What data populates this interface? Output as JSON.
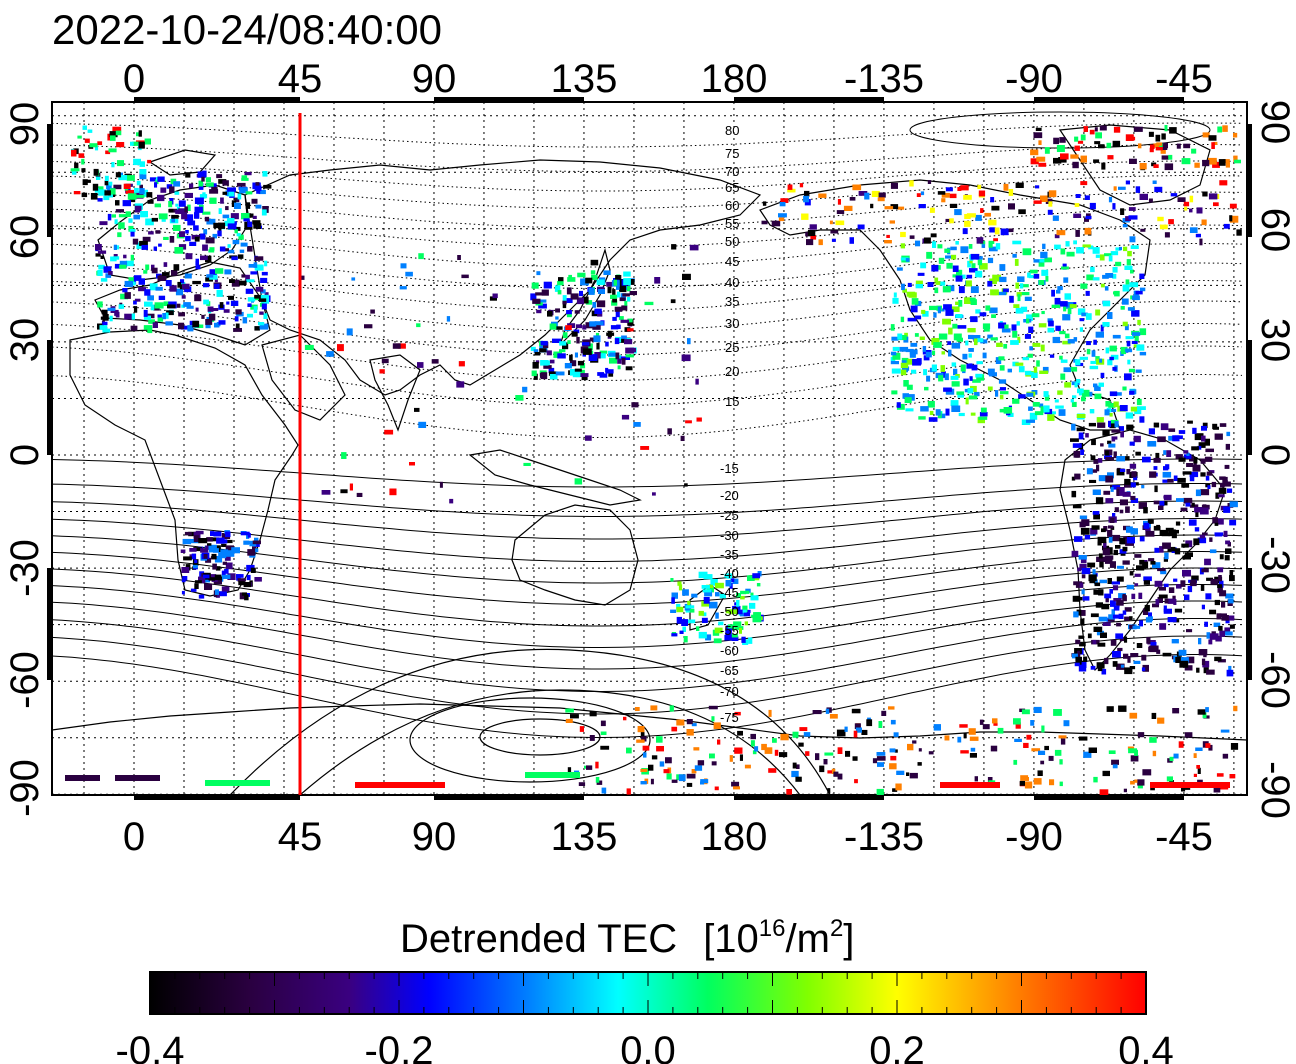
{
  "title": "2022-10-24/08:40:00",
  "map": {
    "lon_ticks_top": [
      "0",
      "45",
      "90",
      "135",
      "180",
      "-135",
      "-90",
      "-45"
    ],
    "lon_ticks_bottom": [
      "0",
      "45",
      "90",
      "135",
      "180",
      "-135",
      "-90",
      "-45"
    ],
    "lat_ticks_left": [
      "90",
      "60",
      "30",
      "0",
      "-30",
      "-60",
      "-90"
    ],
    "lat_ticks_right": [
      "90",
      "60",
      "30",
      "0",
      "-30",
      "-60",
      "-90"
    ],
    "lon_range": [
      -20,
      333
    ],
    "lat_range": [
      -92,
      93
    ],
    "terminator_longitude": 50,
    "terminator_color": "#ff0000",
    "contour_labels_north": [
      "80",
      "75",
      "70",
      "65",
      "60",
      "55",
      "50",
      "45",
      "40",
      "35",
      "30",
      "25",
      "20",
      "15"
    ],
    "contour_labels_south": [
      "-15",
      "-20",
      "-25",
      "-30",
      "-35",
      "-40",
      "-45",
      "-50",
      "-55",
      "-60",
      "-65",
      "-70",
      "-75"
    ]
  },
  "colorbar": {
    "title": "Detrended TEC",
    "unit_base": "[10",
    "unit_exp": "16",
    "unit_tail": "/m",
    "unit_exp2": "2",
    "unit_close": "]",
    "tick_labels": [
      "-0.4",
      "-0.2",
      "0.0",
      "0.2",
      "0.4"
    ],
    "range": [
      -0.4,
      0.4
    ],
    "colors": [
      "#000000",
      "#2a0040",
      "#3a0080",
      "#0000ff",
      "#0080ff",
      "#00ffff",
      "#00ff60",
      "#80ff00",
      "#ffff00",
      "#ff8000",
      "#ff0000"
    ]
  }
}
